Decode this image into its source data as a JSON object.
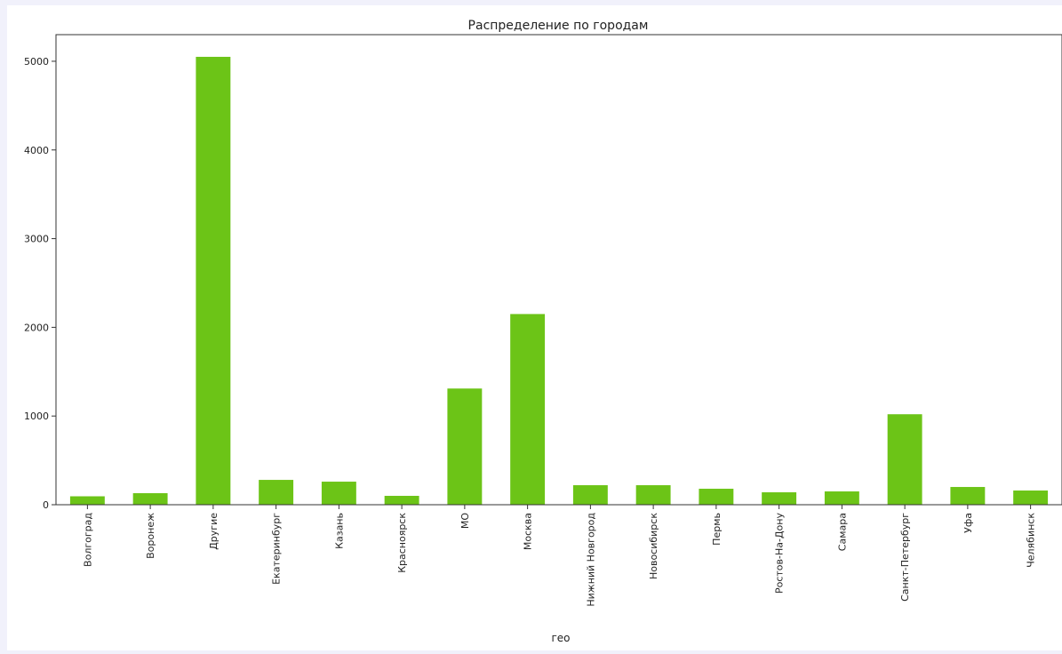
{
  "chart_data": {
    "type": "bar",
    "title": "Распределение по городам",
    "xlabel": "гео",
    "ylabel": "",
    "ylim": [
      0,
      5300
    ],
    "yticks": [
      0,
      1000,
      2000,
      3000,
      4000,
      5000
    ],
    "bar_color": "#6cc417",
    "grid": false,
    "categories": [
      "Волгоград",
      "Воронеж",
      "Другие",
      "Екатеринбург",
      "Казань",
      "Красноярск",
      "МО",
      "Москва",
      "Нижний Новгород",
      "Новосибирск",
      "Пермь",
      "Ростов-На-Дону",
      "Самара",
      "Санкт-Петербург",
      "Уфа",
      "Челябинск"
    ],
    "values": [
      95,
      130,
      5050,
      280,
      260,
      100,
      1310,
      2150,
      220,
      220,
      180,
      140,
      150,
      1020,
      200,
      160
    ]
  }
}
